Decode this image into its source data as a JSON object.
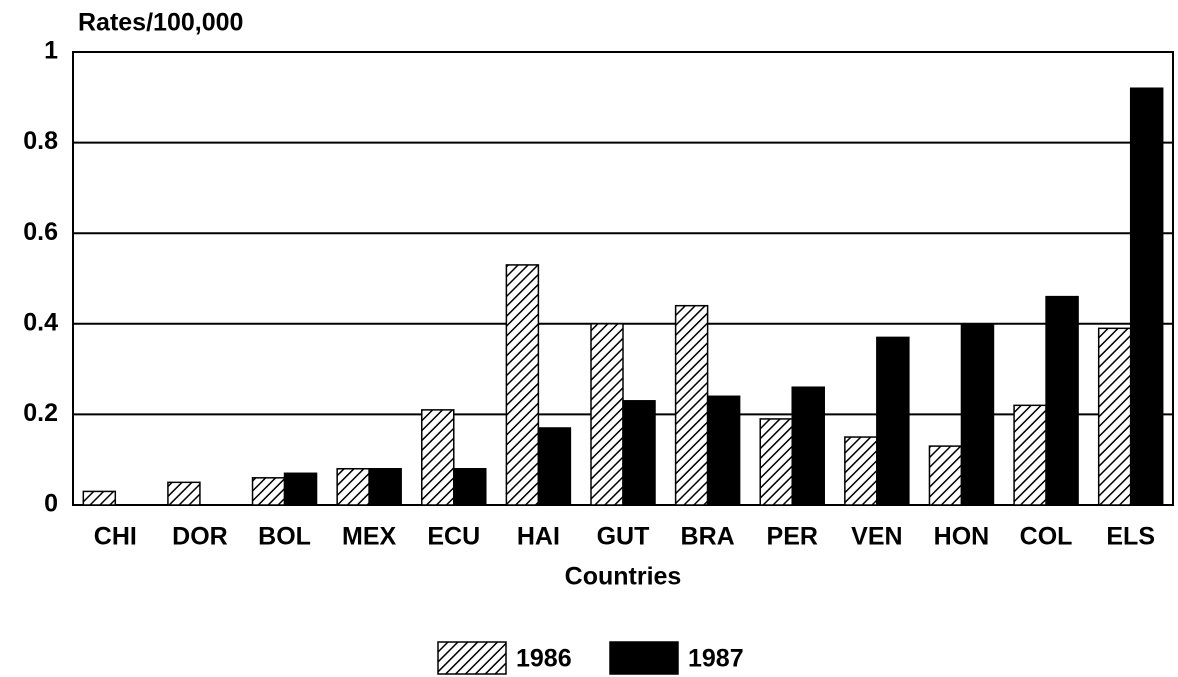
{
  "chart_data": {
    "type": "bar",
    "title": "Rates/100,000",
    "x_label": "Countries",
    "categories": [
      "CHI",
      "DOR",
      "BOL",
      "MEX",
      "ECU",
      "HAI",
      "GUT",
      "BRA",
      "PER",
      "VEN",
      "HON",
      "COL",
      "ELS"
    ],
    "series": [
      {
        "name": "1986",
        "color": "#000000",
        "hatch": true,
        "values": [
          0.03,
          0.05,
          0.06,
          0.08,
          0.21,
          0.53,
          0.4,
          0.44,
          0.19,
          0.15,
          0.13,
          0.22,
          0.39
        ]
      },
      {
        "name": "1987",
        "color": "#000000",
        "hatch": false,
        "values": [
          null,
          null,
          0.07,
          0.08,
          0.08,
          0.17,
          0.23,
          0.24,
          0.26,
          0.37,
          0.4,
          0.46,
          0.92
        ]
      }
    ],
    "ylim": [
      0,
      1
    ],
    "yticks": [
      0,
      0.2,
      0.4,
      0.6,
      0.8,
      1
    ],
    "grid": true,
    "legend": "bottom"
  }
}
